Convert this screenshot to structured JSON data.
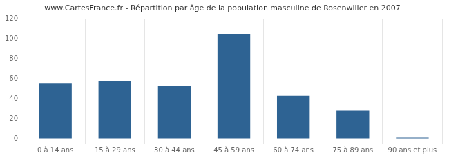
{
  "chart_data": {
    "type": "bar",
    "title": "www.CartesFrance.fr - Répartition par âge de la population masculine de Rosenwiller en 2007",
    "categories": [
      "0 à 14 ans",
      "15 à 29 ans",
      "30 à 44 ans",
      "45 à 59 ans",
      "60 à 74 ans",
      "75 à 89 ans",
      "90 ans et plus"
    ],
    "values": [
      55,
      58,
      53,
      105,
      43,
      28,
      1
    ],
    "color": "#2e6393",
    "ylim": [
      0,
      120
    ],
    "yticks": [
      0,
      20,
      40,
      60,
      80,
      100,
      120
    ],
    "grid": true
  }
}
